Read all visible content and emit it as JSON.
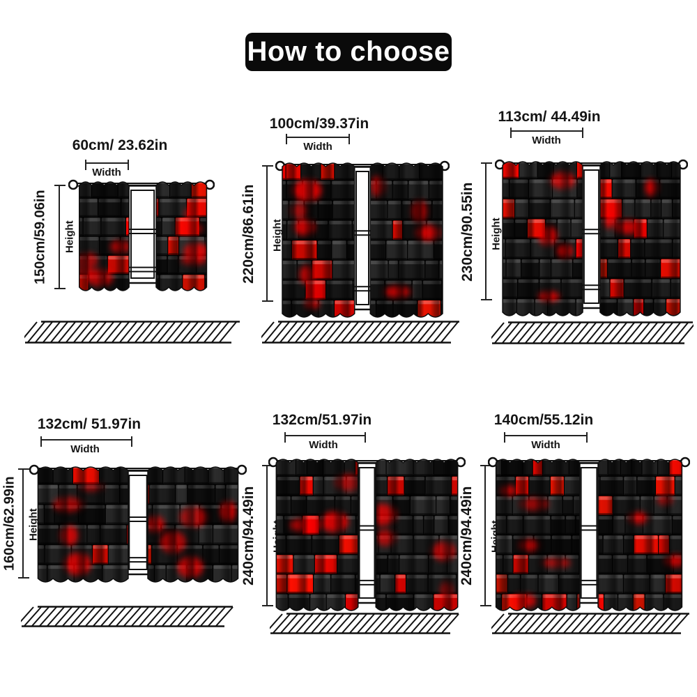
{
  "title": "How to choose",
  "labels": {
    "width": "Width",
    "height": "Height"
  },
  "figures": [
    {
      "width_label": "60cm/ 23.62in",
      "height_label": "150cm/59.06in"
    },
    {
      "width_label": "100cm/39.37in",
      "height_label": "220cm/86.61in"
    },
    {
      "width_label": "113cm/ 44.49in",
      "height_label": "230cm/90.55in"
    },
    {
      "width_label": "132cm/ 51.97in",
      "height_label": "160cm/62.99in"
    },
    {
      "width_label": "132cm/51.97in",
      "height_label": "240cm/94.49in"
    },
    {
      "width_label": "140cm/55.12in",
      "height_label": "240cm/94.49in"
    }
  ],
  "colors": {
    "accent_red": "#f40000",
    "curtain_black": "#161616",
    "label_text": "#151515",
    "title_bg": "#0a0a0a",
    "title_text": "#ffffff"
  }
}
